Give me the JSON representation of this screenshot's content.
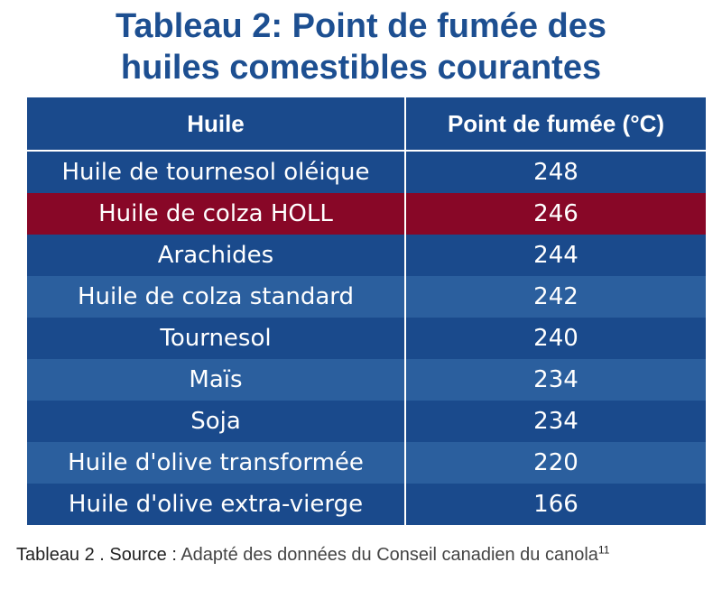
{
  "title": {
    "line1": "Tableau 2: Point de fumée des",
    "line2": "huiles comestibles courantes"
  },
  "colors": {
    "header_bg": "#1a4a8c",
    "row_dark": "#1a4a8c",
    "row_light": "#2b5f9e",
    "highlight": "#880727",
    "title_color": "#1d4f91"
  },
  "chart_data": {
    "type": "table",
    "columns": [
      "Huile",
      "Point de fumée (°C)"
    ],
    "rows": [
      {
        "oil": "Huile de tournesol oléique",
        "value": "248",
        "highlight": false
      },
      {
        "oil": "Huile de colza HOLL",
        "value": "246",
        "highlight": true
      },
      {
        "oil": "Arachides",
        "value": "244",
        "highlight": false
      },
      {
        "oil": "Huile de colza standard",
        "value": "242",
        "highlight": false
      },
      {
        "oil": "Tournesol",
        "value": "240",
        "highlight": false
      },
      {
        "oil": "Maïs",
        "value": "234",
        "highlight": false
      },
      {
        "oil": "Soja",
        "value": "234",
        "highlight": false
      },
      {
        "oil": "Huile d'olive transformée",
        "value": "220",
        "highlight": false
      },
      {
        "oil": "Huile d'olive extra-vierge",
        "value": "166",
        "highlight": false
      }
    ]
  },
  "source": {
    "label": "Tableau 2 . Source :",
    "text": "Adapté des données du Conseil canadien du canola",
    "footnote": "11"
  }
}
